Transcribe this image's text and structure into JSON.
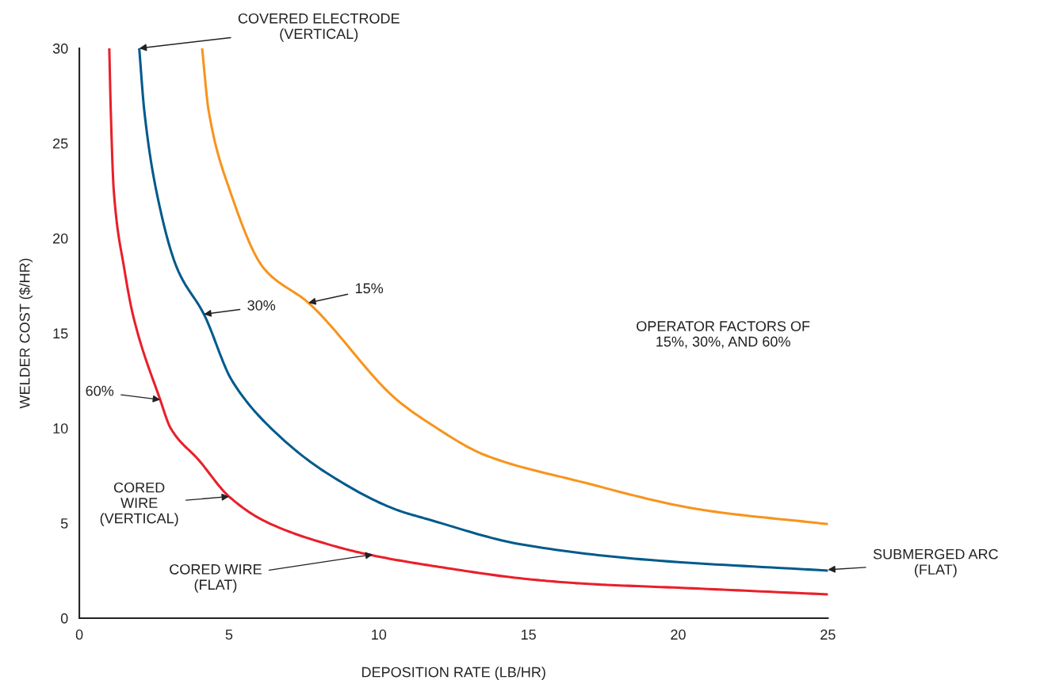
{
  "chart_data": {
    "type": "line",
    "xlabel": "DEPOSITION RATE (LB/HR)",
    "ylabel": "WELDER COST ($/HR)",
    "xlim": [
      0,
      25
    ],
    "ylim": [
      0,
      30
    ],
    "xticks": [
      0,
      5,
      10,
      15,
      20,
      25
    ],
    "yticks": [
      0,
      5,
      10,
      15,
      20,
      25,
      30
    ],
    "grid": false,
    "marker": "none",
    "line_style": "solid",
    "series": [
      {
        "color": "#e8202a",
        "x": [
          1.0,
          1.05,
          1.15,
          1.5,
          1.8,
          2.7,
          3.05,
          4.0,
          5.0,
          6.2,
          8.5,
          9.8,
          12,
          15,
          17,
          20,
          25
        ],
        "values": [
          30,
          26.7,
          22.5,
          18.4,
          15.9,
          11.5,
          10,
          8.3,
          6.4,
          5.1,
          3.8,
          3.3,
          2.7,
          2.05,
          1.8,
          1.6,
          1.25
        ]
      },
      {
        "color": "#005a8c",
        "x": [
          2.0,
          2.17,
          2.57,
          3.27,
          4.16,
          5.1,
          6.6,
          8.3,
          10.6,
          11.65,
          14.7,
          18.75,
          25
        ],
        "values": [
          30,
          26.7,
          22.5,
          18.4,
          16.0,
          12.5,
          9.7,
          7.6,
          5.7,
          5.2,
          3.9,
          3.1,
          2.5
        ]
      },
      {
        "color": "#f7941d",
        "x": [
          4.1,
          4.32,
          5.03,
          6.17,
          7.65,
          10.6,
          11.65,
          13.6,
          16.7,
          20.8,
          25
        ],
        "values": [
          30,
          26.7,
          22.5,
          18.4,
          16.6,
          11.5,
          10.3,
          8.55,
          7.2,
          5.7,
          4.95
        ]
      }
    ],
    "annotations": [
      {
        "text": "COVERED ELECTRODE\n(VERTICAL)",
        "x": 2.0,
        "y": 30
      },
      {
        "text": "30%",
        "x": 4.16,
        "y": 16.0
      },
      {
        "text": "15%",
        "x": 7.65,
        "y": 16.6
      },
      {
        "text": "60%",
        "x": 2.7,
        "y": 11.5
      },
      {
        "text": "CORED\nWIRE\n(VERTICAL)",
        "x": 5.0,
        "y": 6.4
      },
      {
        "text": "CORED WIRE\n(FLAT)",
        "x": 9.8,
        "y": 3.35
      },
      {
        "text": "SUBMERGED ARC\n(FLAT)",
        "x": 25,
        "y": 2.55
      },
      "OPERATOR FACTORS OF\n15%, 30%, AND 60%"
    ]
  }
}
